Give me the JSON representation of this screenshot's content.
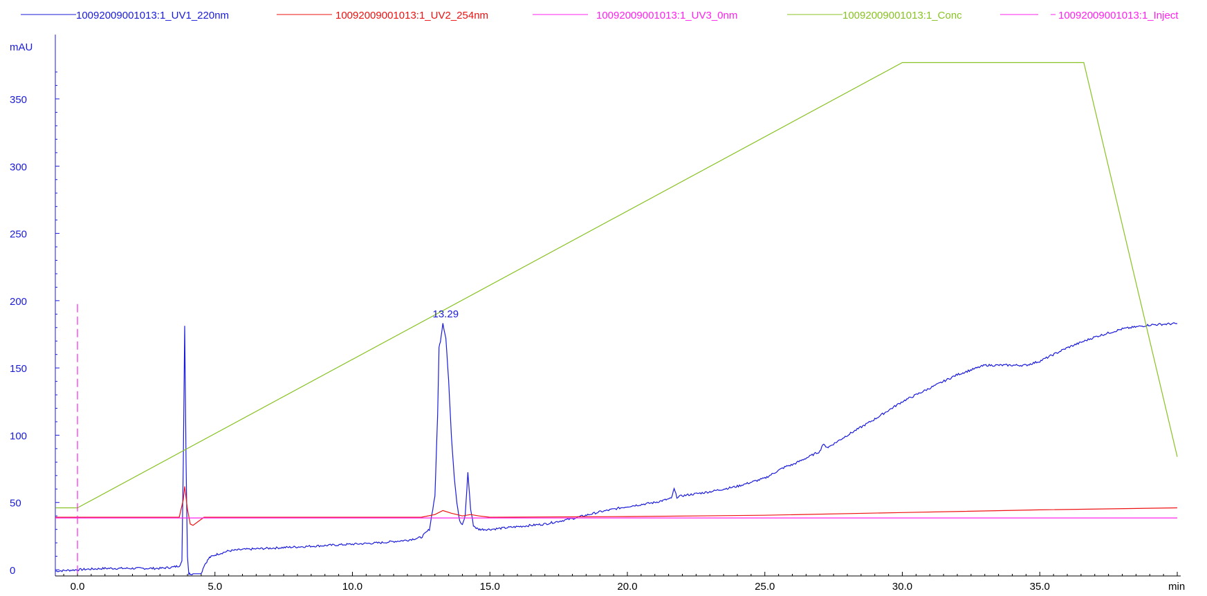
{
  "chart_data": {
    "type": "line",
    "xlabel": "min",
    "ylabel": "mAU",
    "xlim": [
      -0.8,
      40.2
    ],
    "ylim": [
      -3,
      380
    ],
    "x_ticks": [
      0.0,
      5.0,
      10.0,
      15.0,
      20.0,
      25.0,
      30.0,
      35.0
    ],
    "x_tick_labels": [
      "0.0",
      "5.0",
      "10.0",
      "15.0",
      "20.0",
      "25.0",
      "30.0",
      "35.0"
    ],
    "y_ticks": [
      0,
      50,
      100,
      150,
      200,
      250,
      300,
      350
    ],
    "y_tick_labels": [
      "0",
      "50",
      "100",
      "150",
      "200",
      "250",
      "300",
      "350"
    ],
    "grid": false,
    "legend_position": "top",
    "annotations": [
      {
        "text": "13.29",
        "x": 13.29,
        "y": 183.5,
        "color": "#1a1adb"
      }
    ],
    "series": [
      {
        "name": "10092009001013:1_UV1_220nm",
        "color": "#1a1adb",
        "style": "solid",
        "noise": true,
        "x": [
          -0.8,
          0.0,
          1.0,
          2.0,
          3.0,
          3.5,
          3.7,
          3.8,
          3.85,
          3.9,
          3.95,
          4.0,
          4.05,
          4.1,
          4.2,
          4.3,
          4.5,
          4.6,
          4.8,
          5.0,
          5.5,
          6.0,
          7.0,
          8.0,
          9.0,
          10.0,
          11.0,
          12.0,
          12.5,
          12.8,
          13.0,
          13.1,
          13.15,
          13.2,
          13.29,
          13.4,
          13.5,
          13.6,
          13.7,
          13.8,
          13.9,
          14.0,
          14.1,
          14.2,
          14.3,
          14.4,
          14.5,
          14.6,
          14.8,
          15.0,
          16.0,
          17.0,
          18.0,
          19.0,
          20.0,
          21.0,
          21.6,
          21.7,
          21.8,
          22.0,
          23.0,
          24.0,
          25.0,
          25.6,
          25.8,
          26.0,
          27.0,
          27.1,
          27.3,
          28.0,
          29.0,
          30.0,
          31.0,
          32.0,
          33.0,
          34.0,
          34.5,
          35.0,
          36.0,
          37.0,
          38.0,
          39.0,
          40.0
        ],
        "y": [
          -1,
          0,
          1,
          1,
          1,
          2,
          3,
          6,
          80,
          182,
          80,
          10,
          -3,
          -3,
          -3,
          -3,
          -3,
          3,
          9,
          11,
          14,
          15,
          16,
          17,
          18,
          19,
          20,
          22,
          24,
          30,
          55,
          115,
          165,
          170,
          183.5,
          172,
          140,
          100,
          70,
          50,
          36,
          33,
          40,
          72,
          45,
          33,
          31,
          30,
          30,
          30,
          32,
          34,
          38,
          43,
          47,
          50,
          53,
          60,
          54,
          55,
          58,
          62,
          68,
          75,
          77,
          78,
          88,
          93,
          91,
          100,
          112,
          125,
          135,
          145,
          152,
          152,
          152,
          155,
          165,
          173,
          179,
          182,
          183
        ]
      },
      {
        "name": "10092009001013:1_UV2_254nm",
        "color": "#ee1111",
        "style": "solid",
        "noise": false,
        "x": [
          -0.8,
          3.7,
          3.85,
          3.9,
          4.0,
          4.1,
          4.2,
          4.4,
          4.6,
          5.0,
          8.0,
          12.5,
          13.0,
          13.29,
          13.6,
          14.0,
          14.3,
          14.6,
          15.0,
          20.0,
          25.0,
          30.0,
          35.0,
          40.0
        ],
        "y": [
          39,
          39,
          52,
          62,
          45,
          34,
          33,
          36,
          39,
          39,
          39,
          39,
          41,
          44,
          42,
          40,
          41,
          40,
          39,
          39.5,
          40.5,
          42.5,
          44.5,
          46
        ]
      },
      {
        "name": "10092009001013:1_UV3_0nm",
        "color": "#ff22ee",
        "style": "solid",
        "noise": false,
        "x": [
          -0.8,
          40.0
        ],
        "y": [
          38.5,
          38.5
        ]
      },
      {
        "name": "10092009001013:1_Conc",
        "color": "#88c222",
        "style": "solid",
        "noise": false,
        "x": [
          -0.8,
          0.0,
          30.0,
          36.6,
          40.0
        ],
        "y": [
          46,
          46,
          377,
          377,
          84
        ]
      },
      {
        "name": "10092009001013:1_Inject",
        "color": "#ff22ee",
        "style": "dashed",
        "noise": false,
        "x": [
          0.0,
          0.0
        ],
        "y": [
          -3,
          200
        ]
      }
    ]
  }
}
